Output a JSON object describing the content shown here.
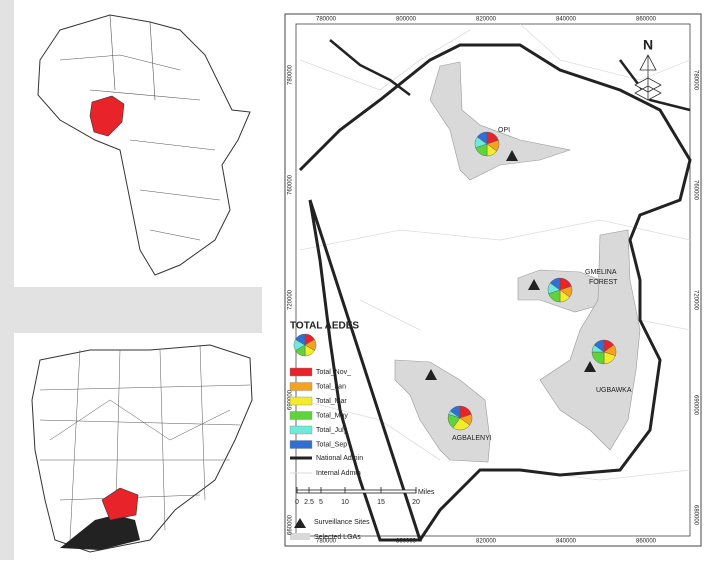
{
  "map": {
    "x_ticks_top": [
      "780000",
      "800000",
      "820000",
      "840000",
      "860000"
    ],
    "x_ticks_bottom": [
      "780000",
      "800000",
      "820000",
      "840000",
      "860000"
    ],
    "y_ticks_left": [
      "780000",
      "760000",
      "720000",
      "690000",
      "660000"
    ],
    "y_ticks_right": [
      "780000",
      "760000",
      "720000",
      "690000",
      "680000"
    ],
    "north": "N",
    "sites": [
      {
        "label": [
          "OPI"
        ],
        "pie": [
          20,
          15,
          15,
          20,
          15,
          15
        ]
      },
      {
        "label": [
          "GMELINA",
          "FOREST"
        ],
        "pie": [
          20,
          15,
          15,
          20,
          15,
          15
        ]
      },
      {
        "label": [
          "UGBAWKA"
        ],
        "pie": [
          15,
          15,
          20,
          25,
          10,
          15
        ]
      },
      {
        "label": [
          "AGBALENYI"
        ],
        "pie": [
          20,
          15,
          25,
          20,
          5,
          15
        ]
      }
    ],
    "legend": {
      "title": "TOTAL AEDES",
      "items": [
        {
          "label": "Total_Nov_",
          "color": "#e8232a"
        },
        {
          "label": "Total_Jan",
          "color": "#f5a21c"
        },
        {
          "label": "Total_Mar",
          "color": "#f2ec2a"
        },
        {
          "label": "Total_May",
          "color": "#5fd43a"
        },
        {
          "label": "Total_July",
          "color": "#6fe9d9"
        },
        {
          "label": "Total_Sep",
          "color": "#2f6fd6"
        }
      ],
      "national": "National Admin",
      "internal": "Internal Admin"
    },
    "scale": {
      "ticks": [
        "0",
        "2.5",
        "5",
        "10",
        "15",
        "20"
      ],
      "unit": "Miles"
    },
    "key": {
      "sites": "Surveillance Sites",
      "lgas": "Selected LGAs"
    }
  }
}
